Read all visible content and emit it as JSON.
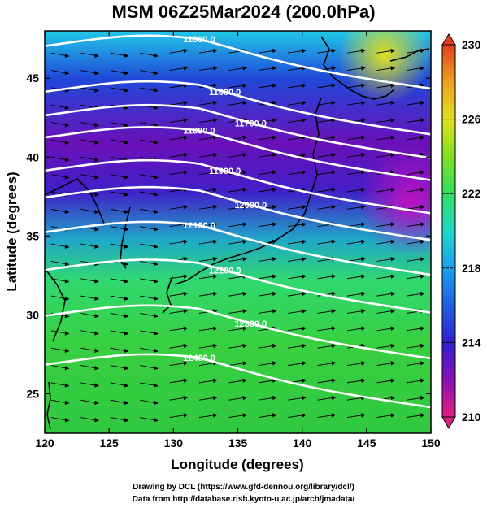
{
  "title": "MSM 06Z25Mar2024 (200.0hPa)",
  "axes": {
    "xlabel": "Longitude (degrees)",
    "ylabel": "Latitude  (degrees)",
    "xlim": [
      120,
      150
    ],
    "ylim": [
      22.5,
      48
    ],
    "xticks": [
      "120",
      "125",
      "130",
      "135",
      "140",
      "145",
      "150"
    ],
    "yticks": [
      "25",
      "30",
      "35",
      "40",
      "45"
    ]
  },
  "colorbar": {
    "range": [
      210,
      230
    ],
    "labels": [
      "230",
      "226",
      "222",
      "218",
      "214",
      "210"
    ],
    "colors": [
      "#e0207f",
      "#8a10b8",
      "#3020d0",
      "#1aa0f0",
      "#20d8c8",
      "#30e060",
      "#80e020",
      "#e0e020",
      "#f0a020",
      "#e04020"
    ]
  },
  "contours": [
    {
      "label": "11600.0",
      "lat": 46.5
    },
    {
      "label": "11600.0",
      "lat": 43.6
    },
    {
      "label": "11700.0",
      "lat": 42.1
    },
    {
      "label": "11800.0",
      "lat": 40.7
    },
    {
      "label": "11900.0",
      "lat": 38.6
    },
    {
      "label": "12000.0",
      "lat": 36.9
    },
    {
      "label": "12100.0",
      "lat": 34.7
    },
    {
      "label": "12200.0",
      "lat": 32.3
    },
    {
      "label": "12300.0",
      "lat": 29.4
    },
    {
      "label": "12400.0",
      "lat": 26.3
    }
  ],
  "credits": {
    "line1": "Drawing by DCL (https://www.gfd-dennou.org/library/dcl/)",
    "line2": "Data from http://database.rish.kyoto-u.ac.jp/arch/jmadata/"
  }
}
